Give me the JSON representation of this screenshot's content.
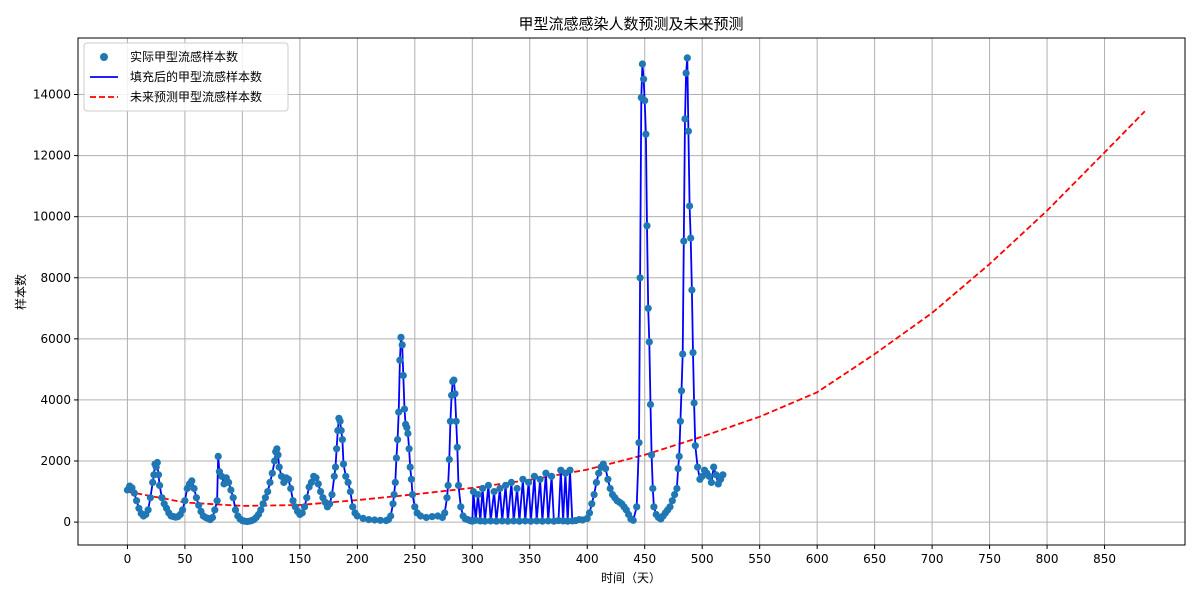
{
  "chart_data": {
    "type": "line",
    "title": "甲型流感感染人数预测及未来预测",
    "xlabel": "时间（天）",
    "ylabel": "样本数",
    "xlim": [
      -43,
      920
    ],
    "ylim": [
      -750,
      15850
    ],
    "x_ticks": [
      0,
      50,
      100,
      150,
      200,
      250,
      300,
      350,
      400,
      450,
      500,
      550,
      600,
      650,
      700,
      750,
      800,
      850
    ],
    "y_ticks": [
      0,
      2000,
      4000,
      6000,
      8000,
      10000,
      12000,
      14000
    ],
    "grid": true,
    "legend_position": "top-left",
    "series": [
      {
        "name": "实际甲型流感样本数",
        "kind": "scatter",
        "color": "#1f77b4",
        "points": [
          [
            0,
            1050
          ],
          [
            2,
            1180
          ],
          [
            4,
            1120
          ],
          [
            6,
            950
          ],
          [
            8,
            700
          ],
          [
            10,
            450
          ],
          [
            12,
            280
          ],
          [
            14,
            200
          ],
          [
            16,
            250
          ],
          [
            18,
            400
          ],
          [
            20,
            800
          ],
          [
            22,
            1300
          ],
          [
            23,
            1550
          ],
          [
            24,
            1900
          ],
          [
            25,
            1800
          ],
          [
            26,
            1950
          ],
          [
            27,
            1550
          ],
          [
            28,
            1200
          ],
          [
            30,
            800
          ],
          [
            32,
            600
          ],
          [
            34,
            450
          ],
          [
            36,
            300
          ],
          [
            38,
            200
          ],
          [
            40,
            180
          ],
          [
            42,
            160
          ],
          [
            44,
            180
          ],
          [
            46,
            250
          ],
          [
            48,
            400
          ],
          [
            50,
            700
          ],
          [
            52,
            1100
          ],
          [
            54,
            1250
          ],
          [
            56,
            1350
          ],
          [
            58,
            1100
          ],
          [
            60,
            800
          ],
          [
            62,
            550
          ],
          [
            64,
            350
          ],
          [
            66,
            200
          ],
          [
            68,
            150
          ],
          [
            70,
            120
          ],
          [
            72,
            80
          ],
          [
            74,
            150
          ],
          [
            76,
            400
          ],
          [
            78,
            700
          ],
          [
            79,
            2150
          ],
          [
            80,
            1650
          ],
          [
            82,
            1500
          ],
          [
            84,
            1250
          ],
          [
            86,
            1450
          ],
          [
            88,
            1300
          ],
          [
            90,
            1050
          ],
          [
            92,
            800
          ],
          [
            94,
            400
          ],
          [
            96,
            200
          ],
          [
            98,
            100
          ],
          [
            100,
            50
          ],
          [
            102,
            30
          ],
          [
            104,
            20
          ],
          [
            106,
            30
          ],
          [
            108,
            50
          ],
          [
            110,
            80
          ],
          [
            112,
            150
          ],
          [
            114,
            250
          ],
          [
            116,
            400
          ],
          [
            118,
            600
          ],
          [
            120,
            800
          ],
          [
            122,
            1000
          ],
          [
            124,
            1300
          ],
          [
            126,
            1600
          ],
          [
            128,
            2000
          ],
          [
            129,
            2300
          ],
          [
            130,
            2400
          ],
          [
            131,
            2200
          ],
          [
            132,
            1800
          ],
          [
            134,
            1500
          ],
          [
            136,
            1300
          ],
          [
            138,
            1450
          ],
          [
            140,
            1400
          ],
          [
            142,
            1100
          ],
          [
            144,
            700
          ],
          [
            146,
            500
          ],
          [
            148,
            350
          ],
          [
            150,
            250
          ],
          [
            152,
            300
          ],
          [
            154,
            500
          ],
          [
            156,
            800
          ],
          [
            158,
            1150
          ],
          [
            160,
            1300
          ],
          [
            162,
            1500
          ],
          [
            164,
            1450
          ],
          [
            166,
            1250
          ],
          [
            168,
            1000
          ],
          [
            170,
            800
          ],
          [
            172,
            650
          ],
          [
            174,
            500
          ],
          [
            176,
            600
          ],
          [
            178,
            900
          ],
          [
            180,
            1500
          ],
          [
            181,
            1800
          ],
          [
            182,
            2400
          ],
          [
            183,
            3000
          ],
          [
            184,
            3400
          ],
          [
            185,
            3300
          ],
          [
            186,
            3000
          ],
          [
            187,
            2700
          ],
          [
            188,
            1900
          ],
          [
            190,
            1500
          ],
          [
            192,
            1300
          ],
          [
            194,
            1000
          ],
          [
            196,
            500
          ],
          [
            198,
            300
          ],
          [
            200,
            200
          ],
          [
            205,
            120
          ],
          [
            210,
            80
          ],
          [
            215,
            70
          ],
          [
            220,
            60
          ],
          [
            225,
            50
          ],
          [
            227,
            80
          ],
          [
            229,
            200
          ],
          [
            231,
            600
          ],
          [
            232,
            900
          ],
          [
            233,
            1300
          ],
          [
            234,
            2100
          ],
          [
            235,
            2700
          ],
          [
            236,
            3600
          ],
          [
            237,
            5300
          ],
          [
            238,
            6050
          ],
          [
            239,
            5800
          ],
          [
            240,
            4800
          ],
          [
            241,
            3700
          ],
          [
            242,
            3200
          ],
          [
            243,
            3100
          ],
          [
            244,
            2900
          ],
          [
            245,
            2400
          ],
          [
            246,
            1800
          ],
          [
            247,
            1400
          ],
          [
            248,
            900
          ],
          [
            250,
            500
          ],
          [
            252,
            300
          ],
          [
            255,
            200
          ],
          [
            260,
            150
          ],
          [
            265,
            180
          ],
          [
            270,
            200
          ],
          [
            274,
            150
          ],
          [
            276,
            300
          ],
          [
            278,
            800
          ],
          [
            279,
            1200
          ],
          [
            280,
            2050
          ],
          [
            281,
            3300
          ],
          [
            282,
            4150
          ],
          [
            283,
            4600
          ],
          [
            284,
            4650
          ],
          [
            285,
            4200
          ],
          [
            286,
            3300
          ],
          [
            287,
            2450
          ],
          [
            288,
            1200
          ],
          [
            290,
            500
          ],
          [
            292,
            200
          ],
          [
            294,
            100
          ],
          [
            296,
            80
          ],
          [
            298,
            50
          ],
          [
            300,
            30
          ],
          [
            301,
            1000
          ],
          [
            303,
            60
          ],
          [
            305,
            900
          ],
          [
            307,
            40
          ],
          [
            309,
            1100
          ],
          [
            311,
            30
          ],
          [
            314,
            1200
          ],
          [
            316,
            40
          ],
          [
            319,
            1000
          ],
          [
            321,
            30
          ],
          [
            324,
            1100
          ],
          [
            326,
            40
          ],
          [
            329,
            1200
          ],
          [
            331,
            30
          ],
          [
            334,
            1300
          ],
          [
            336,
            40
          ],
          [
            339,
            1100
          ],
          [
            341,
            30
          ],
          [
            344,
            1400
          ],
          [
            346,
            40
          ],
          [
            349,
            1300
          ],
          [
            351,
            30
          ],
          [
            354,
            1500
          ],
          [
            356,
            40
          ],
          [
            359,
            1400
          ],
          [
            361,
            30
          ],
          [
            364,
            1600
          ],
          [
            366,
            40
          ],
          [
            369,
            1500
          ],
          [
            371,
            30
          ],
          [
            375,
            50
          ],
          [
            377,
            1700
          ],
          [
            379,
            40
          ],
          [
            381,
            1600
          ],
          [
            383,
            30
          ],
          [
            385,
            1700
          ],
          [
            387,
            40
          ],
          [
            390,
            50
          ],
          [
            393,
            80
          ],
          [
            396,
            70
          ],
          [
            400,
            120
          ],
          [
            402,
            300
          ],
          [
            404,
            600
          ],
          [
            406,
            900
          ],
          [
            408,
            1300
          ],
          [
            410,
            1600
          ],
          [
            412,
            1800
          ],
          [
            414,
            1900
          ],
          [
            416,
            1750
          ],
          [
            418,
            1400
          ],
          [
            420,
            1100
          ],
          [
            422,
            900
          ],
          [
            424,
            800
          ],
          [
            426,
            700
          ],
          [
            428,
            650
          ],
          [
            430,
            600
          ],
          [
            432,
            500
          ],
          [
            434,
            400
          ],
          [
            436,
            250
          ],
          [
            438,
            100
          ],
          [
            440,
            60
          ],
          [
            443,
            500
          ],
          [
            445,
            2600
          ],
          [
            446,
            8000
          ],
          [
            447,
            13900
          ],
          [
            448,
            15000
          ],
          [
            449,
            14500
          ],
          [
            450,
            13800
          ],
          [
            451,
            12700
          ],
          [
            452,
            9700
          ],
          [
            453,
            7000
          ],
          [
            454,
            5900
          ],
          [
            455,
            3850
          ],
          [
            456,
            2200
          ],
          [
            457,
            1100
          ],
          [
            458,
            500
          ],
          [
            460,
            250
          ],
          [
            462,
            150
          ],
          [
            464,
            100
          ],
          [
            466,
            200
          ],
          [
            468,
            300
          ],
          [
            470,
            400
          ],
          [
            472,
            500
          ],
          [
            474,
            700
          ],
          [
            476,
            900
          ],
          [
            478,
            1100
          ],
          [
            479,
            1750
          ],
          [
            480,
            2150
          ],
          [
            481,
            3300
          ],
          [
            482,
            4300
          ],
          [
            483,
            5500
          ],
          [
            484,
            9200
          ],
          [
            485,
            13200
          ],
          [
            486,
            14700
          ],
          [
            487,
            15200
          ],
          [
            488,
            12800
          ],
          [
            489,
            10350
          ],
          [
            490,
            9300
          ],
          [
            491,
            7600
          ],
          [
            492,
            5550
          ],
          [
            493,
            3900
          ],
          [
            494,
            2500
          ],
          [
            496,
            1800
          ],
          [
            498,
            1400
          ],
          [
            500,
            1500
          ],
          [
            502,
            1700
          ],
          [
            504,
            1600
          ],
          [
            506,
            1500
          ],
          [
            508,
            1300
          ],
          [
            510,
            1800
          ],
          [
            512,
            1550
          ],
          [
            514,
            1250
          ],
          [
            516,
            1400
          ],
          [
            518,
            1550
          ]
        ]
      },
      {
        "name": "填充后的甲型流感样本数",
        "kind": "line",
        "color": "#0000ff"
      },
      {
        "name": "未来预测甲型流感样本数",
        "kind": "dashed-line",
        "color": "#ff0000",
        "points": [
          [
            0,
            1000
          ],
          [
            50,
            640
          ],
          [
            100,
            530
          ],
          [
            150,
            560
          ],
          [
            200,
            720
          ],
          [
            250,
            910
          ],
          [
            300,
            1120
          ],
          [
            350,
            1380
          ],
          [
            400,
            1720
          ],
          [
            450,
            2200
          ],
          [
            500,
            2800
          ],
          [
            550,
            3450
          ],
          [
            600,
            4250
          ],
          [
            650,
            5500
          ],
          [
            700,
            6850
          ],
          [
            750,
            8450
          ],
          [
            800,
            10200
          ],
          [
            850,
            12100
          ],
          [
            885,
            13450
          ]
        ]
      }
    ]
  }
}
